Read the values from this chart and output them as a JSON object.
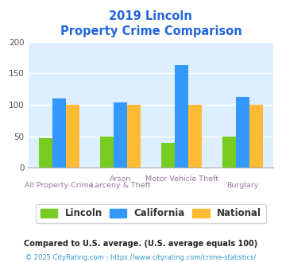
{
  "title_line1": "2019 Lincoln",
  "title_line2": "Property Crime Comparison",
  "cat_labels_top": [
    "",
    "Arson",
    "Motor Vehicle Theft",
    ""
  ],
  "cat_labels_bot": [
    "All Property Crime",
    "Larceny & Theft",
    "",
    "Burglary"
  ],
  "lincoln_values": [
    47,
    49,
    39,
    49
  ],
  "california_values": [
    110,
    104,
    163,
    113
  ],
  "national_values": [
    100,
    100,
    100,
    100
  ],
  "lincoln_color": "#77cc22",
  "california_color": "#3399ff",
  "national_color": "#ffbb33",
  "ylim": [
    0,
    200
  ],
  "yticks": [
    0,
    50,
    100,
    150,
    200
  ],
  "plot_bg": "#ddeeff",
  "title_color": "#2266dd",
  "legend_labels": [
    "Lincoln",
    "California",
    "National"
  ],
  "legend_text_color": "#333333",
  "footnote1": "Compared to U.S. average. (U.S. average equals 100)",
  "footnote2": "© 2025 CityRating.com - https://www.cityrating.com/crime-statistics/",
  "footnote1_color": "#222222",
  "footnote2_color": "#3399cc",
  "xlabel_top_color": "#997799",
  "xlabel_bot_color": "#997799",
  "bar_width": 0.22
}
